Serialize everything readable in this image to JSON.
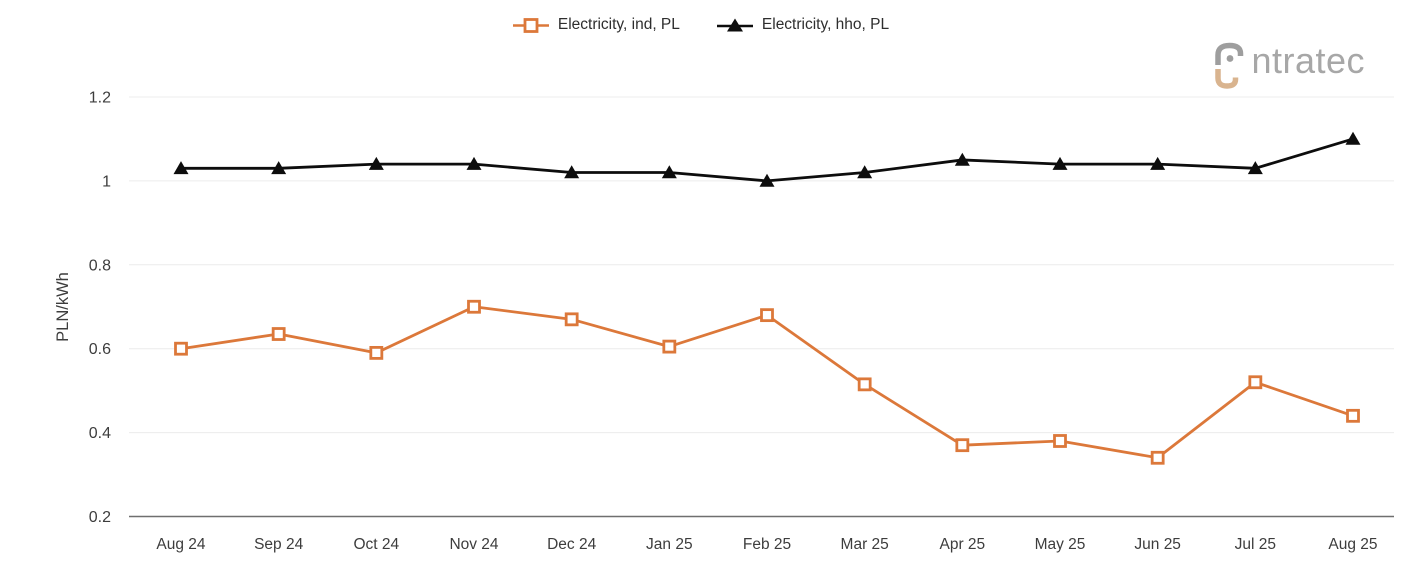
{
  "logo": {
    "brand": "intratec",
    "text_after_icon": "ntratec",
    "gray": "#9e9e9e",
    "accent": "#d9b48f"
  },
  "chart_data": {
    "type": "line",
    "title": "",
    "xlabel": "",
    "ylabel": "PLN/kWh",
    "ylim": [
      0.2,
      1.2
    ],
    "yticks": [
      0.2,
      0.4,
      0.6,
      0.8,
      1,
      1.2
    ],
    "ytick_labels": [
      "0.2",
      "0.4",
      "0.6",
      "0.8",
      "1",
      "1.2"
    ],
    "grid": "horizontal",
    "legend_position": "top-center",
    "categories": [
      "Aug 24",
      "Sep 24",
      "Oct 24",
      "Nov 24",
      "Dec 24",
      "Jan 25",
      "Feb 25",
      "Mar 25",
      "Apr 25",
      "May 25",
      "Jun 25",
      "Jul 25",
      "Aug 25"
    ],
    "series": [
      {
        "name": "Electricity, ind, PL",
        "color": "#dc783a",
        "marker": "square-open",
        "values": [
          0.6,
          0.635,
          0.59,
          0.7,
          0.67,
          0.605,
          0.68,
          0.515,
          0.37,
          0.38,
          0.34,
          0.52,
          0.44
        ]
      },
      {
        "name": "Electricity, hho, PL",
        "color": "#0d0d0d",
        "marker": "triangle-filled",
        "values": [
          1.03,
          1.03,
          1.04,
          1.04,
          1.02,
          1.02,
          1.0,
          1.02,
          1.05,
          1.04,
          1.04,
          1.03,
          1.1
        ]
      }
    ]
  }
}
